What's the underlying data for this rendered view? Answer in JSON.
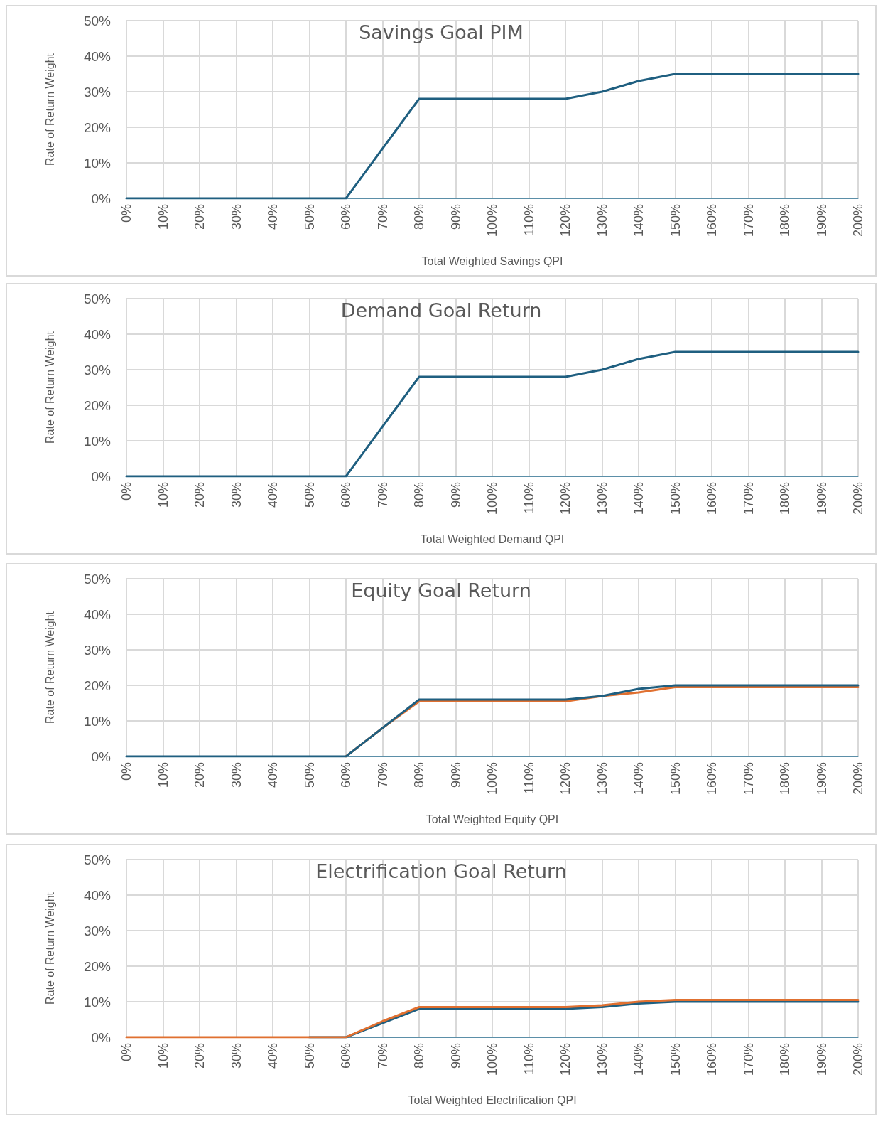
{
  "chart_data": [
    {
      "type": "line",
      "title": "Savings Goal PIM",
      "xlabel": "Total Weighted Savings QPI",
      "ylabel": "Rate of Return Weight",
      "categories": [
        "0%",
        "10%",
        "20%",
        "30%",
        "40%",
        "50%",
        "60%",
        "70%",
        "80%",
        "90%",
        "100%",
        "110%",
        "120%",
        "130%",
        "140%",
        "150%",
        "160%",
        "170%",
        "180%",
        "190%",
        "200%"
      ],
      "series": [
        {
          "color": "#1f5f80",
          "values": [
            0,
            0,
            0,
            0,
            0,
            0,
            0,
            14,
            28,
            28,
            28,
            28,
            28,
            30,
            33,
            35,
            35,
            35,
            35,
            35,
            35
          ]
        }
      ],
      "ylim": [
        0,
        50
      ],
      "yticks": [
        {
          "value": 0,
          "label": "0%"
        },
        {
          "value": 10,
          "label": "10%"
        },
        {
          "value": 20,
          "label": "20%"
        },
        {
          "value": 30,
          "label": "30%"
        },
        {
          "value": 40,
          "label": "40%"
        },
        {
          "value": 50,
          "label": "50%"
        }
      ],
      "grid": true,
      "marker": "none",
      "line_style": "solid"
    },
    {
      "type": "line",
      "title": "Demand Goal Return",
      "xlabel": "Total Weighted Demand QPI",
      "ylabel": "Rate of Return Weight",
      "categories": [
        "0%",
        "10%",
        "20%",
        "30%",
        "40%",
        "50%",
        "60%",
        "70%",
        "80%",
        "90%",
        "100%",
        "110%",
        "120%",
        "130%",
        "140%",
        "150%",
        "160%",
        "170%",
        "180%",
        "190%",
        "200%"
      ],
      "series": [
        {
          "color": "#1f5f80",
          "values": [
            0,
            0,
            0,
            0,
            0,
            0,
            0,
            14,
            28,
            28,
            28,
            28,
            28,
            30,
            33,
            35,
            35,
            35,
            35,
            35,
            35
          ]
        }
      ],
      "ylim": [
        0,
        50
      ],
      "yticks": [
        {
          "value": 0,
          "label": "0%"
        },
        {
          "value": 10,
          "label": "10%"
        },
        {
          "value": 20,
          "label": "20%"
        },
        {
          "value": 30,
          "label": "30%"
        },
        {
          "value": 40,
          "label": "40%"
        },
        {
          "value": 50,
          "label": "50%"
        }
      ],
      "grid": true,
      "marker": "none",
      "line_style": "solid"
    },
    {
      "type": "line",
      "title": "Equity Goal Return",
      "xlabel": "Total Weighted Equity QPI",
      "ylabel": "Rate of Return Weight",
      "categories": [
        "0%",
        "10%",
        "20%",
        "30%",
        "40%",
        "50%",
        "60%",
        "70%",
        "80%",
        "90%",
        "100%",
        "110%",
        "120%",
        "130%",
        "140%",
        "150%",
        "160%",
        "170%",
        "180%",
        "190%",
        "200%"
      ],
      "series": [
        {
          "color": "#e07030",
          "values": [
            null,
            null,
            null,
            null,
            null,
            null,
            0,
            8,
            15.5,
            15.5,
            15.5,
            15.5,
            15.5,
            17,
            18,
            19.5,
            19.5,
            19.5,
            19.5,
            19.5,
            19.5
          ]
        },
        {
          "color": "#1f5f80",
          "values": [
            0,
            0,
            0,
            0,
            0,
            0,
            0,
            8,
            16,
            16,
            16,
            16,
            16,
            17,
            19,
            20,
            20,
            20,
            20,
            20,
            20
          ]
        }
      ],
      "ylim": [
        0,
        50
      ],
      "yticks": [
        {
          "value": 0,
          "label": "0%"
        },
        {
          "value": 10,
          "label": "10%"
        },
        {
          "value": 20,
          "label": "20%"
        },
        {
          "value": 30,
          "label": "30%"
        },
        {
          "value": 40,
          "label": "40%"
        },
        {
          "value": 50,
          "label": "50%"
        }
      ],
      "grid": true,
      "marker": "none",
      "line_style": "solid"
    },
    {
      "type": "line",
      "title": "Electrification Goal Return",
      "xlabel": "Total Weighted Electrification QPI",
      "ylabel": "Rate of Return Weight",
      "categories": [
        "0%",
        "10%",
        "20%",
        "30%",
        "40%",
        "50%",
        "60%",
        "70%",
        "80%",
        "90%",
        "100%",
        "110%",
        "120%",
        "130%",
        "140%",
        "150%",
        "160%",
        "170%",
        "180%",
        "190%",
        "200%"
      ],
      "series": [
        {
          "color": "#1f5f80",
          "values": [
            null,
            null,
            null,
            null,
            null,
            0,
            0,
            4,
            8,
            8,
            8,
            8,
            8,
            8.5,
            9.5,
            10,
            10,
            10,
            10,
            10,
            10
          ]
        },
        {
          "color": "#e07030",
          "values": [
            0,
            0,
            0,
            0,
            0,
            0,
            0,
            4.5,
            8.5,
            8.5,
            8.5,
            8.5,
            8.5,
            9,
            10,
            10.5,
            10.5,
            10.5,
            10.5,
            10.5,
            10.5
          ]
        }
      ],
      "ylim": [
        0,
        50
      ],
      "yticks": [
        {
          "value": 0,
          "label": "0%"
        },
        {
          "value": 10,
          "label": "10%"
        },
        {
          "value": 20,
          "label": "20%"
        },
        {
          "value": 30,
          "label": "30%"
        },
        {
          "value": 40,
          "label": "40%"
        },
        {
          "value": 50,
          "label": "50%"
        }
      ],
      "grid": true,
      "marker": "none",
      "line_style": "solid"
    }
  ]
}
